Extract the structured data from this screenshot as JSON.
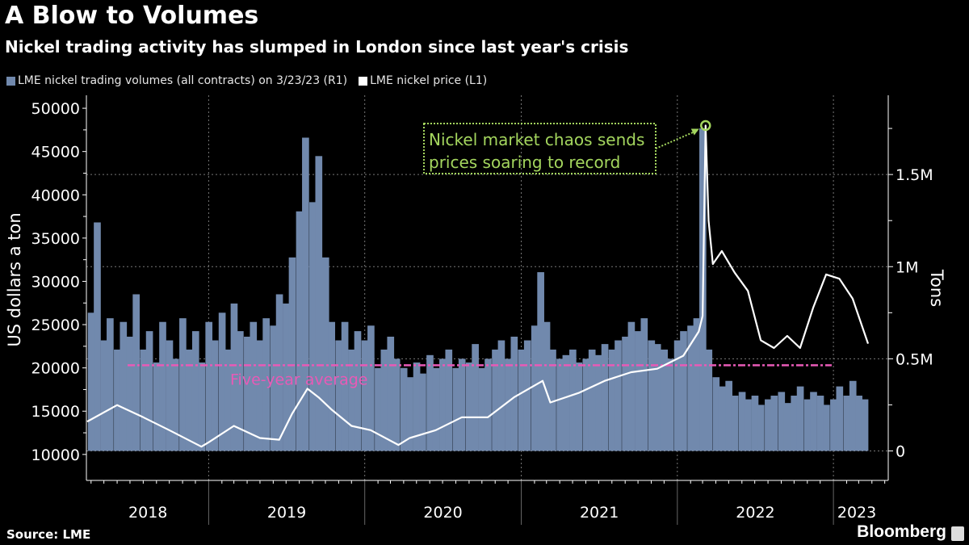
{
  "title": "A Blow to Volumes",
  "subtitle": "Nickel trading activity has slumped in London since last year's crisis",
  "source": "Source: LME",
  "brand": "Bloomberg",
  "chart_data": {
    "type": "bar+line",
    "legend_placement": "top-left",
    "grid": true,
    "colors": {
      "volume": "#7189ad",
      "price": "#ffffff",
      "average": "#e85ab6",
      "annotation": "#a4d65e"
    },
    "series": [
      {
        "name": "LME nickel trading volumes (all contracts) on 3/23/23 (R1)",
        "type": "bar",
        "axis": "right",
        "unit": "tons",
        "points": [
          [
            "2018-04-01",
            750000
          ],
          [
            "2018-04-15",
            1240000
          ],
          [
            "2018-05-01",
            600000
          ],
          [
            "2018-05-15",
            720000
          ],
          [
            "2018-06-01",
            550000
          ],
          [
            "2018-06-15",
            700000
          ],
          [
            "2018-07-01",
            620000
          ],
          [
            "2018-07-15",
            850000
          ],
          [
            "2018-08-01",
            550000
          ],
          [
            "2018-08-15",
            650000
          ],
          [
            "2018-09-01",
            480000
          ],
          [
            "2018-09-15",
            700000
          ],
          [
            "2018-10-01",
            600000
          ],
          [
            "2018-10-15",
            500000
          ],
          [
            "2018-11-01",
            720000
          ],
          [
            "2018-11-15",
            550000
          ],
          [
            "2018-12-01",
            650000
          ],
          [
            "2018-12-15",
            480000
          ],
          [
            "2019-01-01",
            700000
          ],
          [
            "2019-01-15",
            600000
          ],
          [
            "2019-02-01",
            750000
          ],
          [
            "2019-02-15",
            550000
          ],
          [
            "2019-03-01",
            800000
          ],
          [
            "2019-03-15",
            650000
          ],
          [
            "2019-04-01",
            620000
          ],
          [
            "2019-04-15",
            700000
          ],
          [
            "2019-05-01",
            600000
          ],
          [
            "2019-05-15",
            720000
          ],
          [
            "2019-06-01",
            680000
          ],
          [
            "2019-06-15",
            850000
          ],
          [
            "2019-07-01",
            800000
          ],
          [
            "2019-07-15",
            1050000
          ],
          [
            "2019-08-01",
            1300000
          ],
          [
            "2019-08-15",
            1700000
          ],
          [
            "2019-09-01",
            1350000
          ],
          [
            "2019-09-15",
            1600000
          ],
          [
            "2019-10-01",
            1050000
          ],
          [
            "2019-10-15",
            700000
          ],
          [
            "2019-11-01",
            600000
          ],
          [
            "2019-11-15",
            700000
          ],
          [
            "2019-12-01",
            550000
          ],
          [
            "2019-12-15",
            650000
          ],
          [
            "2020-01-01",
            600000
          ],
          [
            "2020-01-15",
            680000
          ],
          [
            "2020-02-01",
            450000
          ],
          [
            "2020-02-15",
            550000
          ],
          [
            "2020-03-01",
            620000
          ],
          [
            "2020-03-15",
            500000
          ],
          [
            "2020-04-01",
            450000
          ],
          [
            "2020-04-15",
            400000
          ],
          [
            "2020-05-01",
            480000
          ],
          [
            "2020-05-15",
            420000
          ],
          [
            "2020-06-01",
            520000
          ],
          [
            "2020-06-15",
            450000
          ],
          [
            "2020-07-01",
            500000
          ],
          [
            "2020-07-15",
            550000
          ],
          [
            "2020-08-01",
            450000
          ],
          [
            "2020-08-15",
            500000
          ],
          [
            "2020-09-01",
            480000
          ],
          [
            "2020-09-15",
            580000
          ],
          [
            "2020-10-01",
            450000
          ],
          [
            "2020-10-15",
            500000
          ],
          [
            "2020-11-01",
            550000
          ],
          [
            "2020-11-15",
            600000
          ],
          [
            "2020-12-01",
            500000
          ],
          [
            "2020-12-15",
            620000
          ],
          [
            "2021-01-01",
            550000
          ],
          [
            "2021-01-15",
            600000
          ],
          [
            "2021-02-01",
            680000
          ],
          [
            "2021-02-15",
            970000
          ],
          [
            "2021-03-01",
            700000
          ],
          [
            "2021-03-15",
            550000
          ],
          [
            "2021-04-01",
            500000
          ],
          [
            "2021-04-15",
            520000
          ],
          [
            "2021-05-01",
            550000
          ],
          [
            "2021-05-15",
            480000
          ],
          [
            "2021-06-01",
            500000
          ],
          [
            "2021-06-15",
            550000
          ],
          [
            "2021-07-01",
            520000
          ],
          [
            "2021-07-15",
            580000
          ],
          [
            "2021-08-01",
            550000
          ],
          [
            "2021-08-15",
            600000
          ],
          [
            "2021-09-01",
            620000
          ],
          [
            "2021-09-15",
            700000
          ],
          [
            "2021-10-01",
            650000
          ],
          [
            "2021-10-15",
            720000
          ],
          [
            "2021-11-01",
            600000
          ],
          [
            "2021-11-15",
            580000
          ],
          [
            "2021-12-01",
            550000
          ],
          [
            "2021-12-15",
            500000
          ],
          [
            "2022-01-01",
            600000
          ],
          [
            "2022-01-15",
            650000
          ],
          [
            "2022-02-01",
            680000
          ],
          [
            "2022-02-15",
            720000
          ],
          [
            "2022-03-01",
            1750000
          ],
          [
            "2022-03-15",
            550000
          ],
          [
            "2022-04-01",
            400000
          ],
          [
            "2022-04-15",
            350000
          ],
          [
            "2022-05-01",
            380000
          ],
          [
            "2022-05-15",
            300000
          ],
          [
            "2022-06-01",
            320000
          ],
          [
            "2022-06-15",
            280000
          ],
          [
            "2022-07-01",
            300000
          ],
          [
            "2022-07-15",
            250000
          ],
          [
            "2022-08-01",
            280000
          ],
          [
            "2022-08-15",
            300000
          ],
          [
            "2022-09-01",
            320000
          ],
          [
            "2022-09-15",
            260000
          ],
          [
            "2022-10-01",
            300000
          ],
          [
            "2022-10-15",
            350000
          ],
          [
            "2022-11-01",
            280000
          ],
          [
            "2022-11-15",
            320000
          ],
          [
            "2022-12-01",
            300000
          ],
          [
            "2022-12-15",
            250000
          ],
          [
            "2023-01-01",
            280000
          ],
          [
            "2023-01-15",
            350000
          ],
          [
            "2023-02-01",
            300000
          ],
          [
            "2023-02-15",
            380000
          ],
          [
            "2023-03-01",
            300000
          ],
          [
            "2023-03-15",
            280000
          ]
        ]
      },
      {
        "name": "LME nickel price (L1)",
        "type": "line",
        "axis": "left",
        "unit": "US dollars a ton",
        "points": [
          [
            "2018-03-23",
            13800
          ],
          [
            "2018-06-01",
            15700
          ],
          [
            "2018-08-01",
            14300
          ],
          [
            "2018-10-01",
            12800
          ],
          [
            "2018-12-15",
            10900
          ],
          [
            "2019-01-01",
            11400
          ],
          [
            "2019-03-01",
            13300
          ],
          [
            "2019-05-01",
            11900
          ],
          [
            "2019-06-15",
            11700
          ],
          [
            "2019-07-15",
            14700
          ],
          [
            "2019-08-20",
            17600
          ],
          [
            "2019-09-15",
            16600
          ],
          [
            "2019-10-15",
            15200
          ],
          [
            "2019-12-01",
            13300
          ],
          [
            "2020-01-15",
            12800
          ],
          [
            "2020-03-20",
            11100
          ],
          [
            "2020-04-15",
            11900
          ],
          [
            "2020-06-15",
            12800
          ],
          [
            "2020-08-15",
            14300
          ],
          [
            "2020-10-15",
            14300
          ],
          [
            "2020-12-15",
            16600
          ],
          [
            "2021-02-20",
            18500
          ],
          [
            "2021-03-10",
            16000
          ],
          [
            "2021-05-15",
            17100
          ],
          [
            "2021-07-15",
            18500
          ],
          [
            "2021-09-15",
            19500
          ],
          [
            "2021-11-15",
            19900
          ],
          [
            "2022-01-15",
            21400
          ],
          [
            "2022-02-20",
            24200
          ],
          [
            "2022-03-01",
            26000
          ],
          [
            "2022-03-08",
            48000
          ],
          [
            "2022-03-15",
            37000
          ],
          [
            "2022-03-25",
            32000
          ],
          [
            "2022-04-15",
            33500
          ],
          [
            "2022-05-15",
            31000
          ],
          [
            "2022-06-15",
            28900
          ],
          [
            "2022-07-15",
            23200
          ],
          [
            "2022-08-15",
            22300
          ],
          [
            "2022-09-15",
            23700
          ],
          [
            "2022-10-15",
            22300
          ],
          [
            "2022-11-15",
            27000
          ],
          [
            "2022-12-15",
            30800
          ],
          [
            "2023-01-15",
            30300
          ],
          [
            "2023-02-15",
            28000
          ],
          [
            "2023-03-23",
            22800
          ]
        ]
      }
    ],
    "reference_line": {
      "label": "Five-year average",
      "axis": "right",
      "value": 465000
    },
    "annotation": {
      "text": [
        "Nickel market chaos sends",
        "prices soaring to record"
      ],
      "date": "2022-03-08",
      "value": 48000
    },
    "x_range": [
      "2018-03-23",
      "2023-03-23"
    ],
    "x_tick_labels": [
      "2018",
      "2019",
      "2020",
      "2021",
      "2022",
      "2023"
    ],
    "y_left": {
      "label": "US dollars a ton",
      "range": [
        7000,
        51500
      ],
      "tick_labels": [
        "10000",
        "15000",
        "20000",
        "25000",
        "30000",
        "35000",
        "40000",
        "45000",
        "50000"
      ],
      "ticks": [
        10000,
        15000,
        20000,
        25000,
        30000,
        35000,
        40000,
        45000,
        50000
      ]
    },
    "y_right": {
      "label": "Tons",
      "range": [
        -160000,
        1930000
      ],
      "tick_labels": [
        "0",
        "0.5M",
        "1M",
        "1.5M"
      ],
      "ticks": [
        0,
        500000,
        1000000,
        1500000
      ]
    }
  }
}
